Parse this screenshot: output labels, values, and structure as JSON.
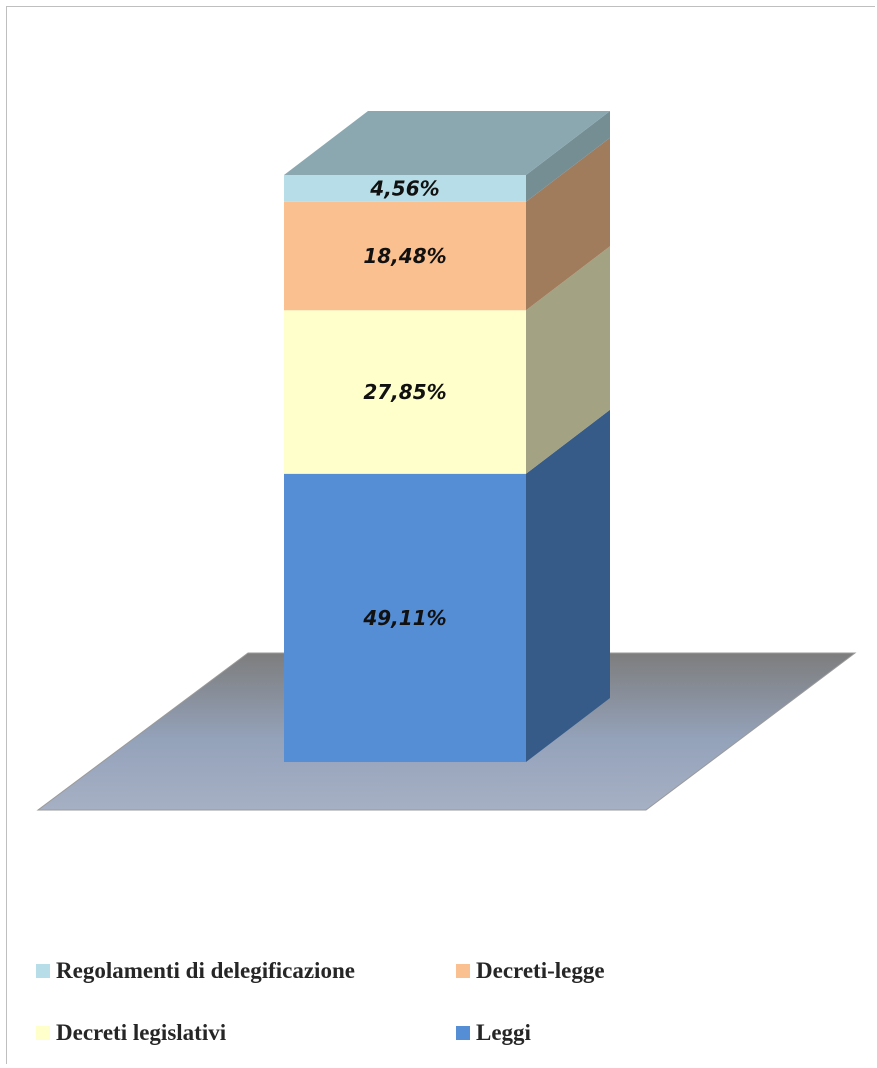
{
  "chart_data": {
    "type": "bar",
    "stacked": true,
    "three_d": true,
    "percent_stacked": true,
    "title": "",
    "xlabel": "",
    "ylabel": "",
    "ylim": [
      0,
      100
    ],
    "legend_position": "bottom",
    "grid": false,
    "series": [
      {
        "name": "Leggi",
        "value": 49.11,
        "label": "49,11%",
        "color": "#558ed5"
      },
      {
        "name": "Decreti legislativi",
        "value": 27.85,
        "label": "27,85%",
        "color": "#ffffcc"
      },
      {
        "name": "Decreti-legge",
        "value": 18.48,
        "label": "18,48%",
        "color": "#fac090"
      },
      {
        "name": "Regolamenti di delegificazione",
        "value": 4.56,
        "label": "4,56%",
        "color": "#b7dee8"
      }
    ],
    "legend_order": [
      "Regolamenti di delegificazione",
      "Decreti-legge",
      "Decreti legislativi",
      "Leggi"
    ]
  }
}
